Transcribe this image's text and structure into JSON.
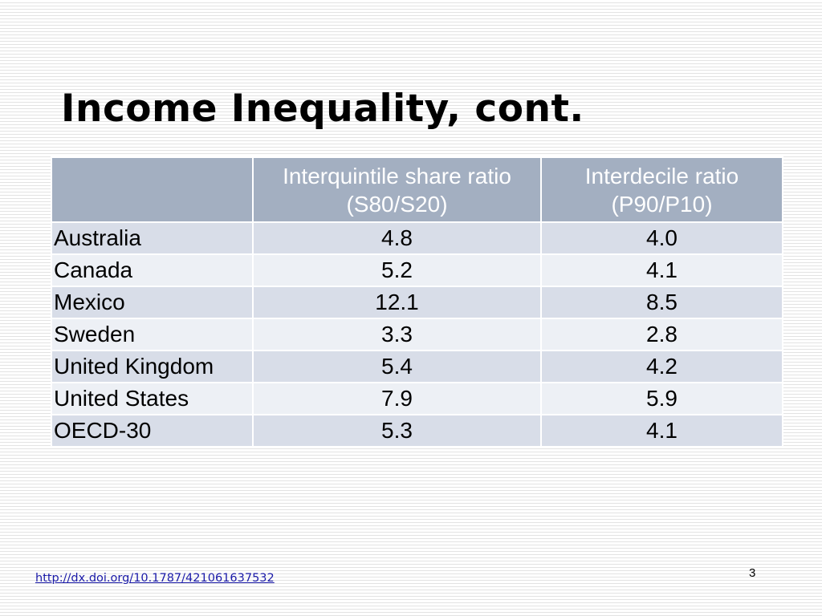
{
  "slide": {
    "title": "Income Inequality, cont.",
    "page_number": "3",
    "source_link": "http://dx.doi.org/10.1787/421061637532"
  },
  "table": {
    "header": {
      "country": "",
      "s80_line1": "Interquintile share ratio",
      "s80_line2": "(S80/S20)",
      "p90_line1": "Interdecile ratio",
      "p90_line2": "(P90/P10)"
    },
    "rows": [
      {
        "country": "Australia",
        "s80_s20": "4.8",
        "p90_p10": "4.0"
      },
      {
        "country": "Canada",
        "s80_s20": "5.2",
        "p90_p10": "4.1"
      },
      {
        "country": "Mexico",
        "s80_s20": "12.1",
        "p90_p10": "8.5"
      },
      {
        "country": "Sweden",
        "s80_s20": "3.3",
        "p90_p10": "2.8"
      },
      {
        "country": "United Kingdom",
        "s80_s20": "5.4",
        "p90_p10": "4.2"
      },
      {
        "country": "United States",
        "s80_s20": "7.9",
        "p90_p10": "5.9"
      },
      {
        "country": "OECD-30",
        "s80_s20": "5.3",
        "p90_p10": "4.1"
      }
    ]
  },
  "colors": {
    "header_background": "#a3afc1",
    "row_odd_background": "#d8dde8",
    "row_even_background": "#edf0f5",
    "link_color": "#1a1aa8"
  }
}
